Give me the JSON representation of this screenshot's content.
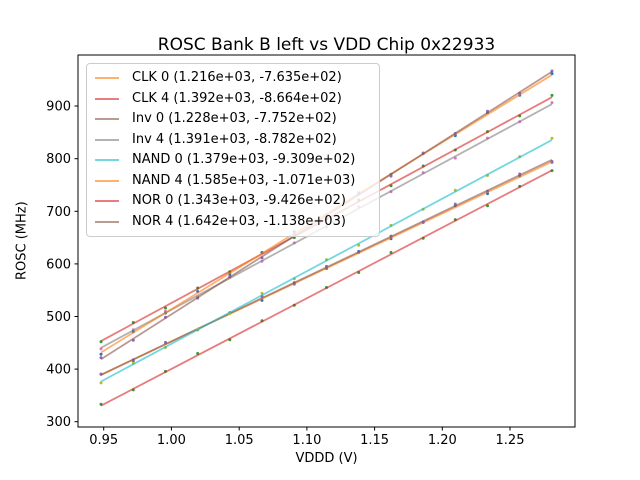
{
  "chart_data": {
    "type": "scatter",
    "title": "ROSC Bank B left vs VDD Chip 0x22933",
    "xlabel": "VDDD (V)",
    "ylabel": "ROSC (MHz)",
    "xlim": [
      0.931,
      1.298
    ],
    "ylim": [
      290,
      997
    ],
    "xticks": [
      0.95,
      1.0,
      1.05,
      1.1,
      1.15,
      1.2,
      1.25
    ],
    "xtick_labels": [
      "0.95",
      "1.00",
      "1.05",
      "1.10",
      "1.15",
      "1.20",
      "1.25"
    ],
    "yticks": [
      300,
      400,
      500,
      600,
      700,
      800,
      900
    ],
    "ytick_labels": [
      "300",
      "400",
      "500",
      "600",
      "700",
      "800",
      "900"
    ],
    "grid": false,
    "legend_position": "upper left",
    "line_alpha": 0.6,
    "x_points": [
      0.948,
      0.9718,
      0.9956,
      1.0194,
      1.0431,
      1.0669,
      1.0907,
      1.1145,
      1.1383,
      1.1621,
      1.1859,
      1.2096,
      1.2334,
      1.2572,
      1.281
    ],
    "scatter_jitter": [
      0.4,
      -1.1,
      1.6,
      -0.6,
      1.0,
      -1.5,
      0.7,
      -0.2,
      1.3,
      -0.9,
      0.5,
      1.5,
      -1.2,
      0.8,
      -0.4
    ],
    "jitter_scale": 2.2,
    "series": [
      {
        "name": "CLK 0",
        "legend_label": "CLK 0 (1.216e+03, -7.635e+02)",
        "slope": 1216,
        "intercept": -763.5,
        "line_color": "#ff7f0e",
        "dot_color": "#1f77b4",
        "jitter_phase": 0
      },
      {
        "name": "CLK 4",
        "legend_label": "CLK 4 (1.392e+03, -8.664e+02)",
        "slope": 1392,
        "intercept": -866.4,
        "line_color": "#d62728",
        "dot_color": "#2ca02c",
        "jitter_phase": 3
      },
      {
        "name": "Inv 0",
        "legend_label": "Inv 0 (1.228e+03, -7.752e+02)",
        "slope": 1228,
        "intercept": -775.2,
        "line_color": "#8c564b",
        "dot_color": "#9467bd",
        "jitter_phase": 6
      },
      {
        "name": "Inv 4",
        "legend_label": "Inv 4 (1.391e+03, -8.782e+02)",
        "slope": 1391,
        "intercept": -878.2,
        "line_color": "#7f7f7f",
        "dot_color": "#e377c2",
        "jitter_phase": 9
      },
      {
        "name": "NAND 0",
        "legend_label": "NAND 0 (1.379e+03, -9.309e+02)",
        "slope": 1379,
        "intercept": -930.9,
        "line_color": "#17becf",
        "dot_color": "#bcbd22",
        "jitter_phase": 12
      },
      {
        "name": "NAND 4",
        "legend_label": "NAND 4 (1.585e+03, -1.071e+03)",
        "slope": 1585,
        "intercept": -1071.0,
        "line_color": "#ff7f0e",
        "dot_color": "#1f77b4",
        "jitter_phase": 5
      },
      {
        "name": "NOR 0",
        "legend_label": "NOR 0 (1.343e+03, -9.426e+02)",
        "slope": 1343,
        "intercept": -942.6,
        "line_color": "#d62728",
        "dot_color": "#2ca02c",
        "jitter_phase": 8
      },
      {
        "name": "NOR 4",
        "legend_label": "NOR 4 (1.642e+03, -1.138e+03)",
        "slope": 1642,
        "intercept": -1138.0,
        "line_color": "#8c564b",
        "dot_color": "#9467bd",
        "jitter_phase": 11
      }
    ]
  }
}
